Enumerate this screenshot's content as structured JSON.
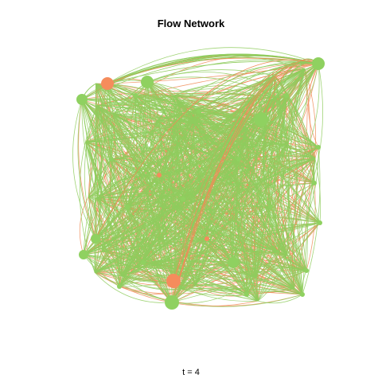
{
  "title": "Flow Network",
  "caption": "t = 4",
  "colors": {
    "edge_green": "#8fcc5e",
    "edge_orange": "#f08c58",
    "node_green": "#8fd160",
    "node_orange": "#f58c5c",
    "background": "#ffffff"
  },
  "graph": {
    "layout": "force-directed",
    "edge_style": "curved",
    "node_categories": [
      "green",
      "orange"
    ],
    "edge_categories": [
      "green",
      "orange"
    ],
    "density": "very dense"
  }
}
